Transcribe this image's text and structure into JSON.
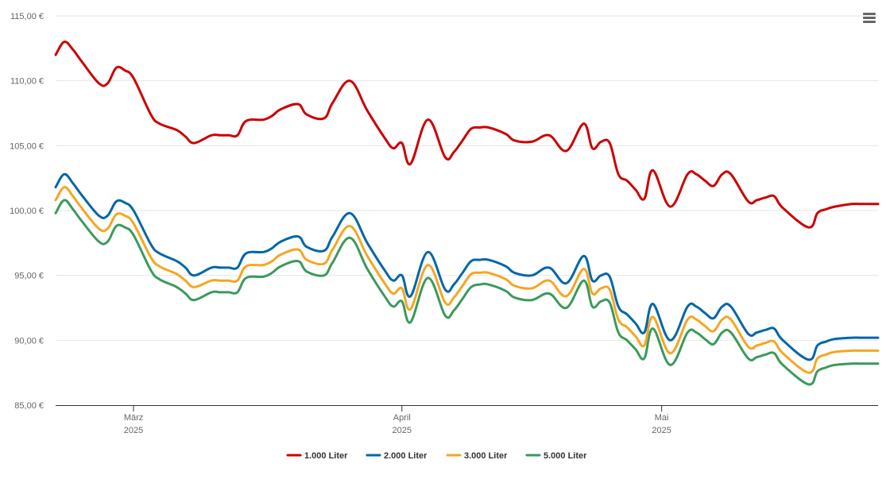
{
  "chart_data": {
    "type": "line",
    "title": "",
    "xlabel": "",
    "ylabel": "",
    "ylim": [
      85,
      115
    ],
    "y_ticks": [
      85,
      90,
      95,
      100,
      105,
      110,
      115
    ],
    "y_tick_labels": [
      "85,00 €",
      "90,00 €",
      "95,00 €",
      "100,00 €",
      "105,00 €",
      "110,00 €",
      "115,00 €"
    ],
    "x_ticks": [
      {
        "date": "2025-03-01",
        "month": "März",
        "year": "2025"
      },
      {
        "date": "2025-04-01",
        "month": "April",
        "year": "2025"
      },
      {
        "date": "2025-05-01",
        "month": "Mai",
        "year": "2025"
      }
    ],
    "xlim": [
      "2025-02-20",
      "2025-05-26"
    ],
    "grid": "horizontal",
    "legend_position": "bottom-center",
    "x": [
      "2025-02-20",
      "2025-02-21",
      "2025-02-22",
      "2025-02-23",
      "2025-02-25",
      "2025-02-26",
      "2025-02-27",
      "2025-02-28",
      "2025-03-01",
      "2025-03-03",
      "2025-03-04",
      "2025-03-06",
      "2025-03-07",
      "2025-03-08",
      "2025-03-10",
      "2025-03-11",
      "2025-03-12",
      "2025-03-13",
      "2025-03-14",
      "2025-03-16",
      "2025-03-17",
      "2025-03-18",
      "2025-03-20",
      "2025-03-21",
      "2025-03-23",
      "2025-03-24",
      "2025-03-26",
      "2025-03-28",
      "2025-03-30",
      "2025-03-31",
      "2025-04-01",
      "2025-04-02",
      "2025-04-04",
      "2025-04-06",
      "2025-04-07",
      "2025-04-08",
      "2025-04-09",
      "2025-04-10",
      "2025-04-11",
      "2025-04-13",
      "2025-04-14",
      "2025-04-16",
      "2025-04-18",
      "2025-04-20",
      "2025-04-22",
      "2025-04-23",
      "2025-04-24",
      "2025-04-25",
      "2025-04-26",
      "2025-04-27",
      "2025-04-28",
      "2025-04-29",
      "2025-04-30",
      "2025-05-02",
      "2025-05-04",
      "2025-05-05",
      "2025-05-06",
      "2025-05-07",
      "2025-05-08",
      "2025-05-09",
      "2025-05-11",
      "2025-05-12",
      "2025-05-13",
      "2025-05-14",
      "2025-05-15",
      "2025-05-18",
      "2025-05-19",
      "2025-05-20",
      "2025-05-21",
      "2025-05-23",
      "2025-05-24",
      "2025-05-26"
    ],
    "series": [
      {
        "name": "1.000 Liter",
        "color": "#cc0000",
        "values": [
          112.0,
          113.0,
          112.4,
          111.5,
          109.8,
          109.8,
          111.0,
          110.8,
          110.2,
          107.4,
          106.7,
          106.2,
          105.7,
          105.2,
          105.8,
          105.8,
          105.8,
          105.8,
          106.9,
          107.0,
          107.3,
          107.8,
          108.2,
          107.4,
          107.1,
          108.3,
          110.0,
          107.7,
          105.6,
          104.8,
          105.2,
          103.6,
          107.0,
          104.1,
          104.5,
          105.4,
          106.3,
          106.4,
          106.4,
          105.9,
          105.4,
          105.3,
          105.8,
          104.6,
          106.7,
          104.8,
          105.3,
          105.2,
          102.8,
          102.3,
          101.6,
          100.9,
          103.1,
          100.3,
          102.8,
          102.8,
          102.3,
          101.9,
          102.8,
          102.8,
          100.7,
          100.8,
          101.0,
          101.1,
          100.2,
          98.7,
          99.8,
          100.1,
          100.3,
          100.5,
          100.5,
          100.5
        ]
      },
      {
        "name": "2.000 Liter",
        "color": "#0066aa",
        "values": [
          101.8,
          102.8,
          102.1,
          101.2,
          99.6,
          99.6,
          100.7,
          100.6,
          100.0,
          97.4,
          96.7,
          96.1,
          95.6,
          95.0,
          95.6,
          95.6,
          95.6,
          95.6,
          96.7,
          96.8,
          97.1,
          97.6,
          98.0,
          97.2,
          96.9,
          98.0,
          99.8,
          97.5,
          95.4,
          94.6,
          95.0,
          93.4,
          96.8,
          93.9,
          94.3,
          95.2,
          96.1,
          96.2,
          96.2,
          95.7,
          95.2,
          95.0,
          95.6,
          94.4,
          96.5,
          94.6,
          95.0,
          94.9,
          92.6,
          92.0,
          91.3,
          90.6,
          92.8,
          90.0,
          92.6,
          92.6,
          92.1,
          91.7,
          92.6,
          92.6,
          90.5,
          90.6,
          90.8,
          90.9,
          90.0,
          88.5,
          89.6,
          89.9,
          90.1,
          90.2,
          90.2,
          90.2
        ]
      },
      {
        "name": "3.000 Liter",
        "color": "#f5a623",
        "values": [
          100.8,
          101.8,
          101.1,
          100.2,
          98.6,
          98.6,
          99.7,
          99.6,
          99.0,
          96.4,
          95.7,
          95.1,
          94.6,
          94.1,
          94.6,
          94.6,
          94.6,
          94.6,
          95.7,
          95.8,
          96.1,
          96.6,
          97.0,
          96.2,
          95.9,
          97.0,
          98.8,
          96.5,
          94.4,
          93.6,
          94.0,
          92.4,
          95.8,
          92.9,
          93.3,
          94.2,
          95.1,
          95.2,
          95.2,
          94.7,
          94.2,
          94.0,
          94.6,
          93.4,
          95.5,
          93.6,
          94.0,
          93.9,
          91.6,
          91.0,
          90.3,
          89.6,
          91.8,
          89.0,
          91.6,
          91.6,
          91.1,
          90.7,
          91.6,
          91.6,
          89.5,
          89.6,
          89.8,
          89.9,
          89.0,
          87.5,
          88.6,
          88.9,
          89.1,
          89.2,
          89.2,
          89.2
        ]
      },
      {
        "name": "5.000 Liter",
        "color": "#3a9a5c",
        "values": [
          99.8,
          100.8,
          100.1,
          99.2,
          97.6,
          97.6,
          98.8,
          98.7,
          98.1,
          95.4,
          94.7,
          94.1,
          93.6,
          93.1,
          93.7,
          93.7,
          93.7,
          93.7,
          94.8,
          94.9,
          95.2,
          95.7,
          96.1,
          95.3,
          95.0,
          96.0,
          97.9,
          95.5,
          93.4,
          92.6,
          93.0,
          91.4,
          94.8,
          91.9,
          92.3,
          93.2,
          94.1,
          94.3,
          94.3,
          93.8,
          93.3,
          93.1,
          93.6,
          92.5,
          94.6,
          92.6,
          93.0,
          92.9,
          90.6,
          90.0,
          89.3,
          88.6,
          90.9,
          88.1,
          90.6,
          90.6,
          90.1,
          89.7,
          90.6,
          90.6,
          88.6,
          88.7,
          88.9,
          89.0,
          88.1,
          86.6,
          87.6,
          87.9,
          88.1,
          88.2,
          88.2,
          88.2
        ]
      }
    ]
  }
}
